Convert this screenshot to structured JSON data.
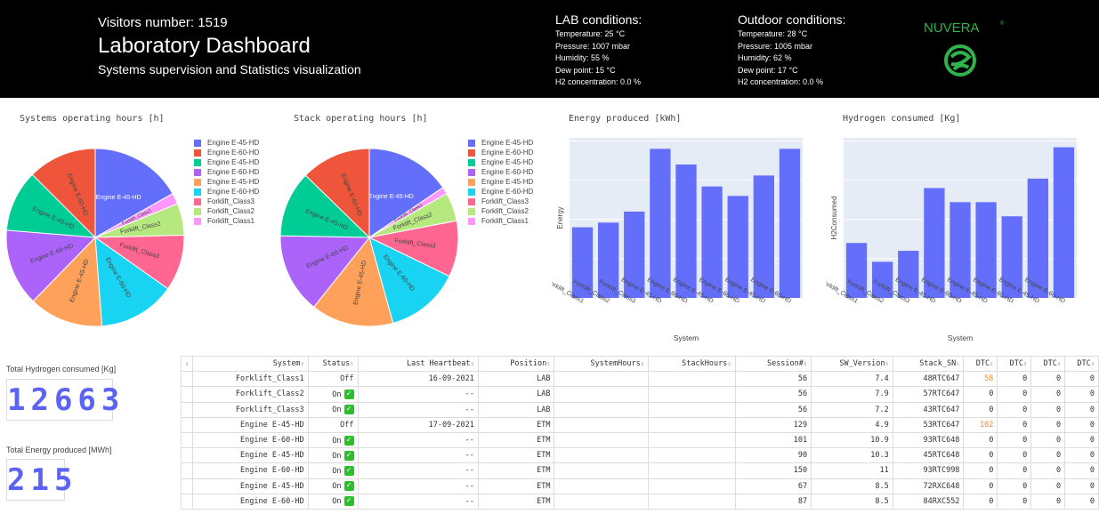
{
  "header": {
    "visitors": "Visitors number: 1519",
    "title": "Laboratory Dashboard",
    "subtitle": "Systems supervision and Statistics visualization",
    "lab": {
      "title": "LAB conditions:",
      "lines": [
        "Temperature: 25 °C",
        "Pressure: 1007 mbar",
        "Humidity: 55 %",
        "Dew point: 15 °C",
        "H2 concentration: 0.0 %"
      ]
    },
    "outdoor": {
      "title": "Outdoor conditions:",
      "lines": [
        "Temperature: 28 °C",
        "Pressure: 1005 mbar",
        "Humidity: 62 %",
        "Dew point: 17 °C",
        "H2 concentration: 0.0 %"
      ]
    },
    "logo_text": "NUVERA",
    "logo_mark": "®"
  },
  "legend_labels": [
    "Engine E-45-HD",
    "Engine E-60-HD",
    "Engine E-45-HD",
    "Engine E-60-HD",
    "Engine E-45-HD",
    "Engine E-60-HD",
    "Forklift_Class3",
    "Forklift_Class2",
    "Forklift_Class1"
  ],
  "slice_colors": [
    "#636efa",
    "#EF553B",
    "#00cc96",
    "#ab63fa",
    "#FFA15A",
    "#19d3f3",
    "#FF6692",
    "#B6E880",
    "#FF97FF"
  ],
  "chart_data": [
    {
      "type": "pie",
      "title": "Systems operating hours [h]",
      "labels": [
        "Engine E-45-HD",
        "Forklift_Class1",
        "Forklift_Class2",
        "Forklift_Class3",
        "Engine E-60-HD",
        "Engine E-45-HD",
        "Engine E-60-HD",
        "Engine E-45-HD",
        "Engine E-60-HD"
      ],
      "colors": [
        "#636efa",
        "#FF97FF",
        "#B6E880",
        "#FF6692",
        "#19d3f3",
        "#FFA15A",
        "#ab63fa",
        "#00cc96",
        "#EF553B"
      ],
      "values": [
        16.8,
        2.0,
        5.8,
        10.2,
        14.0,
        13.5,
        14.0,
        11.2,
        12.5
      ],
      "slice_labels": [
        "Engine E-45-HD",
        "Forklift_Class1",
        "Forklift_Class2",
        "Forklift_Class3",
        "Engine E-60-HD",
        "Engine E-45-HD",
        "Engine E-60-HD",
        "Engine E-45-HD",
        "Engine E-60-HD"
      ],
      "legend": "right"
    },
    {
      "type": "pie",
      "title": "Stack operating hours [h]",
      "labels": [
        "Engine E-45-HD",
        "Forklift_Class1",
        "Forklift_Class2",
        "Forklift_Class3",
        "Engine E-60-HD",
        "Engine E-45-HD",
        "Engine E-60-HD",
        "Engine E-45-HD",
        "Engine E-60-HD"
      ],
      "colors": [
        "#636efa",
        "#FF97FF",
        "#B6E880",
        "#FF6692",
        "#19d3f3",
        "#FFA15A",
        "#ab63fa",
        "#00cc96",
        "#EF553B"
      ],
      "values": [
        15.5,
        1.3,
        5.2,
        10.2,
        13.5,
        15.0,
        14.6,
        12.0,
        12.7
      ],
      "slice_labels": [
        "Engine E-45-HD",
        "Forklift_Class1",
        "Forklift_Class2",
        "Forklift_Class3",
        "Engine E-60-HD",
        "Engine E-45-HD",
        "Engine E-60-HD",
        "Engine E-45-HD",
        "Engine E-60-HD"
      ],
      "legend": "right"
    },
    {
      "type": "bar",
      "title": "Energy produced [kWh]",
      "xlabel": "System",
      "ylabel": "Energy",
      "categories": [
        "Forklift_Class1",
        "Forklift_Class2",
        "Forklift_Class3",
        "Engine E-45-HD",
        "Engine E-60-HD",
        "Engine E-45-HD",
        "Engine E-60-HD",
        "Engine E-45-HD",
        "Engine E-60-HD"
      ],
      "values": [
        45,
        48,
        55,
        95,
        85,
        71,
        65,
        78,
        95
      ],
      "ylim": [
        0,
        102
      ],
      "grid": true
    },
    {
      "type": "bar",
      "title": "Hydrogen consumed [Kg]",
      "xlabel": "System",
      "ylabel": "H2Consumed",
      "categories": [
        "Forklift_Class1",
        "Forklift_Class2",
        "Forklift_Class3",
        "Engine E-45-HD",
        "Engine E-60-HD",
        "Engine E-45-HD",
        "Engine E-60-HD",
        "Engine E-45-HD",
        "Engine E-60-HD"
      ],
      "values": [
        35,
        23,
        30,
        70,
        61,
        61,
        52,
        76,
        96
      ],
      "ylim": [
        0,
        102
      ],
      "grid": true
    }
  ],
  "counters": {
    "hydrogen": {
      "label": "Total Hydrogen consumed [Kg]",
      "value": "12663"
    },
    "energy": {
      "label": "Total Energy produced [MWh]",
      "value": "215"
    }
  },
  "table": {
    "sort_glyph": "⇕",
    "on_glyph": "✓",
    "columns": [
      "",
      "System",
      "Status",
      "Last Heartbeat",
      "Position",
      "SystemHours",
      "StackHours",
      "Session#",
      "SW_Version",
      "Stack_SN",
      "DTC",
      "DTC",
      "DTC",
      "DTC"
    ],
    "rows": [
      [
        "Forklift_Class1",
        "Off",
        "16-09-2021",
        "LAB",
        "",
        "",
        "56",
        "7.4",
        "48RTC647",
        "58",
        "0",
        "0",
        "0"
      ],
      [
        "Forklift_Class2",
        "On",
        "--",
        "LAB",
        "",
        "",
        "56",
        "7.9",
        "57RTC647",
        "0",
        "0",
        "0",
        "0"
      ],
      [
        "Forklift_Class3",
        "On",
        "--",
        "LAB",
        "",
        "",
        "56",
        "7.2",
        "43RTC647",
        "0",
        "0",
        "0",
        "0"
      ],
      [
        "Engine E-45-HD",
        "Off",
        "17-09-2021",
        "ETM",
        "",
        "",
        "129",
        "4.9",
        "53RTC647",
        "102",
        "0",
        "0",
        "0"
      ],
      [
        "Engine E-60-HD",
        "On",
        "--",
        "ETM",
        "",
        "",
        "101",
        "10.9",
        "93RTC648",
        "0",
        "0",
        "0",
        "0"
      ],
      [
        "Engine E-45-HD",
        "On",
        "--",
        "ETM",
        "",
        "",
        "90",
        "10.3",
        "45RTC648",
        "0",
        "0",
        "0",
        "0"
      ],
      [
        "Engine E-60-HD",
        "On",
        "--",
        "ETM",
        "",
        "",
        "150",
        "11",
        "93RTC998",
        "0",
        "0",
        "0",
        "0"
      ],
      [
        "Engine E-45-HD",
        "On",
        "--",
        "ETM",
        "",
        "",
        "67",
        "8.5",
        "72RXC648",
        "0",
        "0",
        "0",
        "0"
      ],
      [
        "Engine E-60-HD",
        "On",
        "--",
        "ETM",
        "",
        "",
        "87",
        "8.5",
        "84RXC552",
        "0",
        "0",
        "0",
        "0"
      ]
    ],
    "highlight_color": "#f0892f"
  }
}
